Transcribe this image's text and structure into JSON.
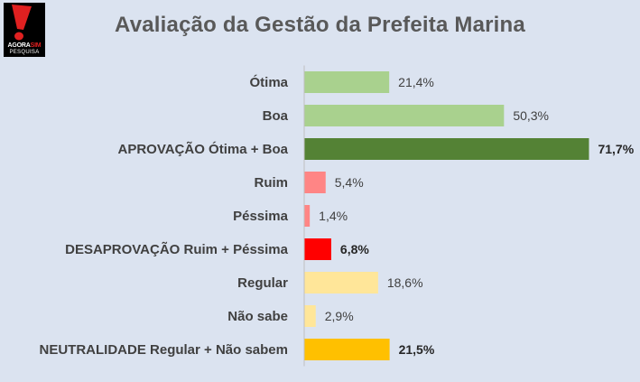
{
  "logo": {
    "brand_a": "AGORA",
    "brand_b": "SIM",
    "subtitle": "PESQUISA"
  },
  "colors": {
    "light_green": "#a9d18e",
    "dark_green": "#548235",
    "pink": "#ff8585",
    "red": "#ff0000",
    "light_yellow": "#ffe699",
    "gold": "#ffc000"
  },
  "chart_data": {
    "type": "bar",
    "orientation": "horizontal",
    "title": "Avaliação da Gestão da Prefeita Marina",
    "categories": [
      "Ótima",
      "Boa",
      "APROVAÇÃO Ótima + Boa",
      "Ruim",
      "Péssima",
      "DESAPROVAÇÃO Ruim + Péssima",
      "Regular",
      "Não sabe",
      "NEUTRALIDADE Regular + Não sabem"
    ],
    "values": [
      21.4,
      50.3,
      71.7,
      5.4,
      1.4,
      6.8,
      18.6,
      2.9,
      21.5
    ],
    "value_labels": [
      "21,4%",
      "50,3%",
      "71,7%",
      "5,4%",
      "1,4%",
      "6,8%",
      "18,6%",
      "2,9%",
      "21,5%"
    ],
    "bold_labels": [
      false,
      false,
      true,
      false,
      false,
      true,
      false,
      false,
      true
    ],
    "bar_colors": [
      "#a9d18e",
      "#a9d18e",
      "#548235",
      "#ff8585",
      "#ff8585",
      "#ff0000",
      "#ffe699",
      "#ffe699",
      "#ffc000"
    ],
    "xlim": [
      0,
      100
    ],
    "grid": false,
    "legend": false
  }
}
